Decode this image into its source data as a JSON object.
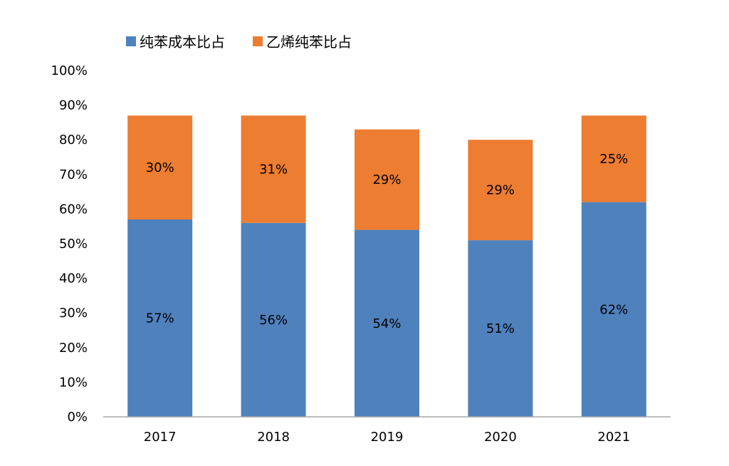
{
  "chart_data": {
    "type": "bar",
    "stacked": true,
    "title": "",
    "xlabel": "",
    "ylabel": "",
    "categories": [
      "2017",
      "2018",
      "2019",
      "2020",
      "2021"
    ],
    "series": [
      {
        "name": "纯苯成本比占",
        "color": "#4f81bd",
        "values": [
          57,
          56,
          54,
          51,
          62
        ],
        "labels": [
          "57%",
          "56%",
          "54%",
          "51%",
          "62%"
        ]
      },
      {
        "name": "乙烯纯苯比占",
        "color": "#ed7d31",
        "values": [
          30,
          31,
          29,
          29,
          25
        ],
        "labels": [
          "30%",
          "31%",
          "29%",
          "29%",
          "25%"
        ]
      }
    ],
    "ylim": [
      0,
      100
    ],
    "yticks": [
      "0%",
      "10%",
      "20%",
      "30%",
      "40%",
      "50%",
      "60%",
      "70%",
      "80%",
      "90%",
      "100%"
    ],
    "grid": false,
    "legend_position": "top-left"
  }
}
